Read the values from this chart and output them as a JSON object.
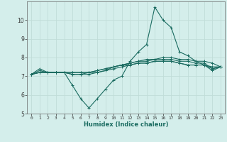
{
  "xlabel": "Humidex (Indice chaleur)",
  "background_color": "#d4eeeb",
  "grid_color": "#c0ddd8",
  "line_color": "#1a6b60",
  "x_min": 0,
  "x_max": 23,
  "y_min": 5,
  "y_max": 11,
  "yticks": [
    5,
    6,
    7,
    8,
    9,
    10
  ],
  "series": [
    [
      7.1,
      7.4,
      7.2,
      7.2,
      7.2,
      6.5,
      5.8,
      5.3,
      5.8,
      6.3,
      6.8,
      7.0,
      7.8,
      8.3,
      8.7,
      10.7,
      10.0,
      9.6,
      8.3,
      8.1,
      7.8,
      7.6,
      7.3,
      7.5
    ],
    [
      7.1,
      7.3,
      7.2,
      7.2,
      7.2,
      7.1,
      7.1,
      7.1,
      7.2,
      7.3,
      7.5,
      7.6,
      7.7,
      7.8,
      7.9,
      7.9,
      8.0,
      8.0,
      7.9,
      7.9,
      7.8,
      7.8,
      7.7,
      7.5
    ],
    [
      7.1,
      7.2,
      7.2,
      7.2,
      7.2,
      7.2,
      7.2,
      7.2,
      7.3,
      7.4,
      7.5,
      7.6,
      7.6,
      7.7,
      7.7,
      7.8,
      7.8,
      7.8,
      7.7,
      7.6,
      7.6,
      7.6,
      7.5,
      7.5
    ],
    [
      7.1,
      7.2,
      7.2,
      7.2,
      7.2,
      7.1,
      7.1,
      7.2,
      7.3,
      7.4,
      7.5,
      7.6,
      7.7,
      7.8,
      7.8,
      7.9,
      7.9,
      7.9,
      7.8,
      7.8,
      7.7,
      7.7,
      7.4,
      7.5
    ],
    [
      7.1,
      7.2,
      7.2,
      7.2,
      7.2,
      7.2,
      7.2,
      7.2,
      7.2,
      7.3,
      7.4,
      7.5,
      7.6,
      7.7,
      7.7,
      7.8,
      7.8,
      7.8,
      7.7,
      7.6,
      7.6,
      7.6,
      7.4,
      7.5
    ]
  ]
}
